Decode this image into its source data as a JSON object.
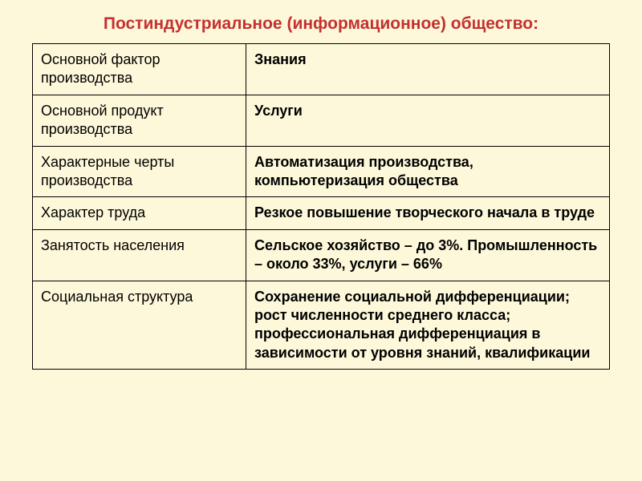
{
  "title": "Постиндустриальное (информационное) общество:",
  "table": {
    "columns": [
      {
        "width": "37%",
        "fontWeight": "normal"
      },
      {
        "width": "63%",
        "fontWeight": "bold"
      }
    ],
    "rows": [
      {
        "label": "Основной фактор производства",
        "value": "Знания"
      },
      {
        "label": "Основной продукт производства",
        "value": "Услуги"
      },
      {
        "label": "Характерные черты производства",
        "value": "Автоматизация производства, компьютеризация общества"
      },
      {
        "label": "Характер труда",
        "value": "Резкое повышение творческого начала в труде"
      },
      {
        "label": "Занятость населения",
        "value": "Сельское хозяйство – до 3%. Промышленность – около 33%, услуги – 66%"
      },
      {
        "label": "Социальная структура",
        "value": "Сохранение социальной дифференциации; рост численности среднего класса; профессиональная дифференциация в зависимости от уровня знаний, квалификации"
      }
    ]
  },
  "colors": {
    "background": "#fdf8da",
    "title": "#c53030",
    "border": "#000000",
    "text": "#000000"
  },
  "typography": {
    "title_fontsize": 21,
    "cell_fontsize": 18,
    "font_family": "Arial"
  }
}
